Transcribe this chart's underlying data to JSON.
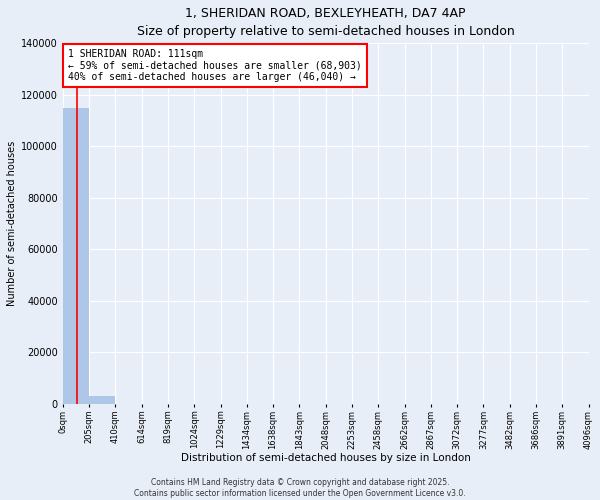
{
  "title_line1": "1, SHERIDAN ROAD, BEXLEYHEATH, DA7 4AP",
  "title_line2": "Size of property relative to semi-detached houses in London",
  "xlabel": "Distribution of semi-detached houses by size in London",
  "ylabel": "Number of semi-detached houses",
  "annotation_title": "1 SHERIDAN ROAD: 111sqm",
  "annotation_line2": "← 59% of semi-detached houses are smaller (68,903)",
  "annotation_line3": "40% of semi-detached houses are larger (46,040) →",
  "footer_line1": "Contains HM Land Registry data © Crown copyright and database right 2025.",
  "footer_line2": "Contains public sector information licensed under the Open Government Licence v3.0.",
  "property_size_sqm": 111,
  "bar_color": "#aec6e8",
  "vline_color": "red",
  "background_color": "#e8eef8",
  "grid_color": "#ffffff",
  "bin_edges": [
    0,
    205,
    410,
    614,
    819,
    1024,
    1229,
    1434,
    1638,
    1843,
    2048,
    2253,
    2458,
    2662,
    2867,
    3072,
    3277,
    3482,
    3686,
    3891,
    4096
  ],
  "bin_labels": [
    "0sqm",
    "205sqm",
    "410sqm",
    "614sqm",
    "819sqm",
    "1024sqm",
    "1229sqm",
    "1434sqm",
    "1638sqm",
    "1843sqm",
    "2048sqm",
    "2253sqm",
    "2458sqm",
    "2662sqm",
    "2867sqm",
    "3072sqm",
    "3277sqm",
    "3482sqm",
    "3686sqm",
    "3891sqm",
    "4096sqm"
  ],
  "bar_heights": [
    115000,
    3200,
    0,
    0,
    0,
    0,
    0,
    0,
    0,
    0,
    0,
    0,
    0,
    0,
    0,
    0,
    0,
    0,
    0,
    0
  ],
  "ylim": [
    0,
    140000
  ],
  "yticks": [
    0,
    20000,
    40000,
    60000,
    80000,
    100000,
    120000,
    140000
  ]
}
